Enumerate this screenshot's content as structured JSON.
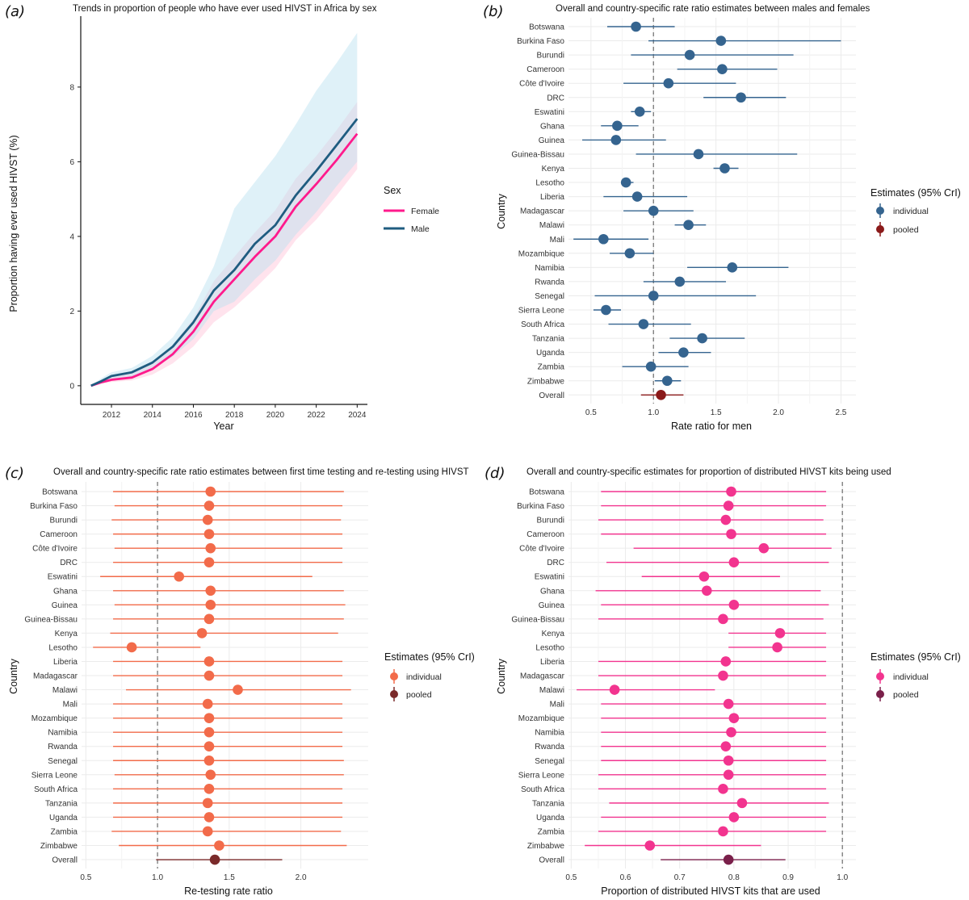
{
  "chart_data": [
    {
      "type": "line",
      "panel": "(a)",
      "title": "Trends in proportion of people who have ever used HIVST in Africa by sex",
      "xlabel": "Year",
      "ylabel": "Proportion having ever used HIVST (%)",
      "xlim": [
        2010.5,
        2024.5
      ],
      "ylim": [
        -0.5,
        9.9
      ],
      "xticks": [
        2012,
        2014,
        2016,
        2018,
        2020,
        2022,
        2024
      ],
      "yticks": [
        0,
        2,
        4,
        6,
        8
      ],
      "legend": {
        "title": "Sex",
        "position": "right"
      },
      "series": [
        {
          "name": "Female",
          "color": "#ff1a8c",
          "band_color": "#ffc0d6",
          "x": [
            2011,
            2011.5,
            2012,
            2013,
            2014,
            2015,
            2016,
            2017,
            2018,
            2019,
            2020,
            2021,
            2022,
            2023,
            2024
          ],
          "values": [
            0,
            0.09,
            0.16,
            0.22,
            0.45,
            0.85,
            1.45,
            2.25,
            2.85,
            3.45,
            4.0,
            4.8,
            5.4,
            6.05,
            6.75
          ],
          "lower": [
            0,
            0.06,
            0.1,
            0.14,
            0.3,
            0.6,
            1.05,
            1.7,
            2.1,
            2.6,
            3.15,
            3.9,
            4.45,
            5.1,
            5.8
          ],
          "upper": [
            0,
            0.15,
            0.24,
            0.32,
            0.6,
            1.1,
            1.8,
            2.8,
            3.45,
            4.1,
            4.7,
            5.55,
            6.15,
            6.85,
            7.6
          ]
        },
        {
          "name": "Male",
          "color": "#1f5c80",
          "band_color": "#b9dff0",
          "x": [
            2011,
            2011.5,
            2012,
            2013,
            2014,
            2015,
            2016,
            2017,
            2018,
            2019,
            2020,
            2021,
            2022,
            2023,
            2024
          ],
          "values": [
            0,
            0.12,
            0.26,
            0.36,
            0.62,
            1.05,
            1.7,
            2.55,
            3.1,
            3.8,
            4.3,
            5.1,
            5.75,
            6.45,
            7.15
          ],
          "lower": [
            0,
            0.07,
            0.16,
            0.24,
            0.45,
            0.78,
            1.25,
            2.0,
            2.25,
            2.85,
            3.35,
            4.05,
            4.65,
            5.35,
            6.0
          ],
          "upper": [
            0,
            0.2,
            0.36,
            0.48,
            0.8,
            1.3,
            2.1,
            3.2,
            4.75,
            5.45,
            6.15,
            7.0,
            7.9,
            8.65,
            9.45
          ]
        }
      ]
    },
    {
      "type": "forest",
      "panel": "(b)",
      "title": "Overall and country-specific rate ratio estimates between males and females",
      "xlabel": "Rate ratio for men",
      "ylabel": "Country",
      "xlim": [
        0.32,
        2.62
      ],
      "xticks": [
        0.5,
        1.0,
        1.5,
        2.0,
        2.5
      ],
      "tick_labels": [
        "0.5",
        "1.0",
        "1.5",
        "2.0",
        "2.5"
      ],
      "reference_line": 1.0,
      "individual_color": "#35648f",
      "pooled_color": "#8b1a1a",
      "legend": {
        "title": "Estimates (95% CrI)",
        "items": [
          "individual",
          "pooled"
        ],
        "position": "right"
      },
      "categories": [
        "Botswana",
        "Burkina Faso",
        "Burundi",
        "Cameroon",
        "Côte d'Ivoire",
        "DRC",
        "Eswatini",
        "Ghana",
        "Guinea",
        "Guinea-Bissau",
        "Kenya",
        "Lesotho",
        "Liberia",
        "Madagascar",
        "Malawi",
        "Mali",
        "Mozambique",
        "Namibia",
        "Rwanda",
        "Senegal",
        "Sierra Leone",
        "South Africa",
        "Tanzania",
        "Uganda",
        "Zambia",
        "Zimbabwe",
        "Overall"
      ],
      "estimates": [
        0.86,
        1.54,
        1.29,
        1.55,
        1.12,
        1.7,
        0.89,
        0.71,
        0.7,
        1.36,
        1.57,
        0.78,
        0.87,
        1.0,
        1.28,
        0.6,
        0.81,
        1.63,
        1.21,
        1.0,
        0.62,
        0.92,
        1.39,
        1.24,
        0.98,
        1.11,
        1.06
      ],
      "lower": [
        0.63,
        0.96,
        0.82,
        1.19,
        0.76,
        1.4,
        0.82,
        0.58,
        0.43,
        0.86,
        1.48,
        0.74,
        0.6,
        0.76,
        1.17,
        0.36,
        0.65,
        1.27,
        0.92,
        0.53,
        0.52,
        0.64,
        1.13,
        1.04,
        0.75,
        1.01,
        0.9
      ],
      "upper": [
        1.17,
        2.5,
        2.12,
        1.99,
        1.66,
        2.06,
        0.98,
        0.88,
        1.1,
        2.15,
        1.68,
        0.84,
        1.27,
        1.32,
        1.42,
        0.96,
        1.0,
        2.08,
        1.58,
        1.82,
        0.74,
        1.3,
        1.73,
        1.46,
        1.28,
        1.22,
        1.24
      ]
    },
    {
      "type": "forest",
      "panel": "(c)",
      "title": "Overall and country-specific rate ratio estimates between first time testing and re-testing using HIVST",
      "xlabel": "Re-testing rate ratio",
      "ylabel": "Country",
      "xlim": [
        0.47,
        2.47
      ],
      "xticks": [
        0.5,
        1.0,
        1.5,
        2.0
      ],
      "tick_labels": [
        "0.5",
        "1.0",
        "1.5",
        "2.0"
      ],
      "reference_line": 1.0,
      "individual_color": "#f26b4a",
      "pooled_color": "#7a2a2a",
      "legend": {
        "title": "Estimates (95% CrI)",
        "items": [
          "individual",
          "pooled"
        ],
        "position": "right"
      },
      "categories": [
        "Botswana",
        "Burkina Faso",
        "Burundi",
        "Cameroon",
        "Côte d'Ivoire",
        "DRC",
        "Eswatini",
        "Ghana",
        "Guinea",
        "Guinea-Bissau",
        "Kenya",
        "Lesotho",
        "Liberia",
        "Madagascar",
        "Malawi",
        "Mali",
        "Mozambique",
        "Namibia",
        "Rwanda",
        "Senegal",
        "Sierra Leone",
        "South Africa",
        "Tanzania",
        "Uganda",
        "Zambia",
        "Zimbabwe",
        "Overall"
      ],
      "estimates": [
        1.37,
        1.36,
        1.35,
        1.36,
        1.37,
        1.36,
        1.15,
        1.37,
        1.37,
        1.36,
        1.31,
        0.82,
        1.36,
        1.36,
        1.56,
        1.35,
        1.36,
        1.36,
        1.36,
        1.36,
        1.37,
        1.36,
        1.35,
        1.36,
        1.35,
        1.43,
        1.4
      ],
      "lower": [
        0.69,
        0.7,
        0.68,
        0.69,
        0.7,
        0.69,
        0.6,
        0.69,
        0.7,
        0.69,
        0.67,
        0.55,
        0.69,
        0.69,
        0.78,
        0.69,
        0.69,
        0.69,
        0.69,
        0.69,
        0.7,
        0.69,
        0.69,
        0.69,
        0.68,
        0.73,
        0.99
      ],
      "upper": [
        2.3,
        2.29,
        2.28,
        2.29,
        2.29,
        2.29,
        2.08,
        2.3,
        2.31,
        2.3,
        2.26,
        1.3,
        2.29,
        2.29,
        2.35,
        2.29,
        2.29,
        2.29,
        2.29,
        2.3,
        2.3,
        2.29,
        2.29,
        2.29,
        2.28,
        2.32,
        1.87
      ]
    },
    {
      "type": "forest",
      "panel": "(d)",
      "title": "Overall and country-specific estimates for proportion of distributed HIVST kits being used",
      "xlabel": "Proportion of distributed HIVST kits that are used",
      "ylabel": "Country",
      "xlim": [
        0.495,
        1.025
      ],
      "xticks": [
        0.5,
        0.6,
        0.7,
        0.8,
        0.9,
        1.0
      ],
      "tick_labels": [
        "0.5",
        "0.6",
        "0.7",
        "0.8",
        "0.9",
        "1.0"
      ],
      "reference_line": 1.0,
      "individual_color": "#f2348f",
      "pooled_color": "#7a1f4a",
      "legend": {
        "title": "Estimates (95% CrI)",
        "items": [
          "individual",
          "pooled"
        ],
        "position": "right"
      },
      "categories": [
        "Botswana",
        "Burkina Faso",
        "Burundi",
        "Cameroon",
        "Côte d'Ivoire",
        "DRC",
        "Eswatini",
        "Ghana",
        "Guinea",
        "Guinea-Bissau",
        "Kenya",
        "Lesotho",
        "Liberia",
        "Madagascar",
        "Malawi",
        "Mali",
        "Mozambique",
        "Namibia",
        "Rwanda",
        "Senegal",
        "Sierra Leone",
        "South Africa",
        "Tanzania",
        "Uganda",
        "Zambia",
        "Zimbabwe",
        "Overall"
      ],
      "estimates": [
        0.795,
        0.79,
        0.785,
        0.795,
        0.855,
        0.8,
        0.745,
        0.75,
        0.8,
        0.78,
        0.885,
        0.88,
        0.785,
        0.78,
        0.58,
        0.79,
        0.8,
        0.795,
        0.785,
        0.79,
        0.79,
        0.78,
        0.815,
        0.8,
        0.78,
        0.645,
        0.79
      ],
      "lower": [
        0.555,
        0.555,
        0.55,
        0.555,
        0.615,
        0.565,
        0.63,
        0.545,
        0.555,
        0.55,
        0.79,
        0.79,
        0.55,
        0.55,
        0.51,
        0.555,
        0.555,
        0.555,
        0.555,
        0.555,
        0.55,
        0.55,
        0.57,
        0.555,
        0.55,
        0.525,
        0.665
      ],
      "upper": [
        0.97,
        0.97,
        0.965,
        0.97,
        0.98,
        0.975,
        0.885,
        0.96,
        0.975,
        0.965,
        0.97,
        0.97,
        0.97,
        0.97,
        0.765,
        0.97,
        0.97,
        0.97,
        0.97,
        0.97,
        0.97,
        0.97,
        0.975,
        0.97,
        0.97,
        0.85,
        0.895
      ]
    }
  ]
}
